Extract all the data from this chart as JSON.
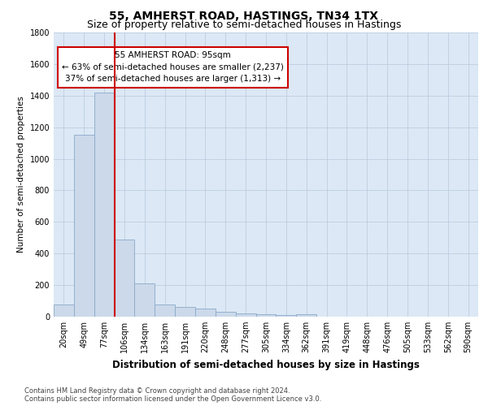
{
  "title": "55, AMHERST ROAD, HASTINGS, TN34 1TX",
  "subtitle": "Size of property relative to semi-detached houses in Hastings",
  "xlabel": "Distribution of semi-detached houses by size in Hastings",
  "ylabel": "Number of semi-detached properties",
  "categories": [
    "20sqm",
    "49sqm",
    "77sqm",
    "106sqm",
    "134sqm",
    "163sqm",
    "191sqm",
    "220sqm",
    "248sqm",
    "277sqm",
    "305sqm",
    "334sqm",
    "362sqm",
    "391sqm",
    "419sqm",
    "448sqm",
    "476sqm",
    "505sqm",
    "533sqm",
    "562sqm",
    "590sqm"
  ],
  "values": [
    75,
    1150,
    1420,
    490,
    210,
    75,
    60,
    50,
    30,
    20,
    15,
    10,
    15,
    0,
    0,
    0,
    0,
    0,
    0,
    0,
    0
  ],
  "bar_color": "#ccd9ea",
  "bar_edge_color": "#8aaac8",
  "vline_x": 2.5,
  "vline_color": "#cc0000",
  "annotation_text": "55 AMHERST ROAD: 95sqm\n← 63% of semi-detached houses are smaller (2,237)\n37% of semi-detached houses are larger (1,313) →",
  "annotation_box_color": "#ffffff",
  "annotation_box_edge": "#cc0000",
  "ylim": [
    0,
    1800
  ],
  "yticks": [
    0,
    200,
    400,
    600,
    800,
    1000,
    1200,
    1400,
    1600,
    1800
  ],
  "grid_color": "#b8c8dc",
  "background_color": "#dce8f5",
  "footnote": "Contains HM Land Registry data © Crown copyright and database right 2024.\nContains public sector information licensed under the Open Government Licence v3.0.",
  "title_fontsize": 10,
  "subtitle_fontsize": 9,
  "xlabel_fontsize": 8.5,
  "ylabel_fontsize": 7.5,
  "tick_fontsize": 7,
  "annotation_fontsize": 7.5,
  "footnote_fontsize": 6
}
